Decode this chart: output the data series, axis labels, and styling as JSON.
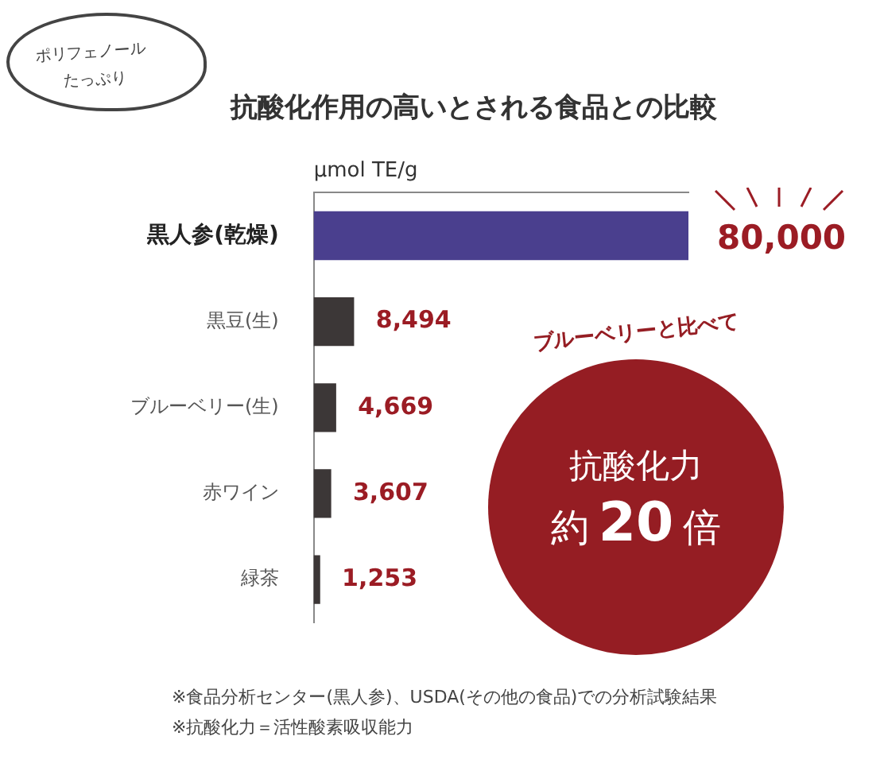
{
  "chart_data": {
    "type": "bar",
    "orientation": "horizontal",
    "title": "抗酸化作用の高いとされる食品との比較",
    "xlabel": "μmol TE/g",
    "categories": [
      "黒人参(乾燥)",
      "黒豆(生)",
      "ブルーベリー(生)",
      "赤ワイン",
      "緑茶"
    ],
    "values": [
      80000,
      8494,
      4669,
      3607,
      1253
    ],
    "colors": [
      "#4a3f8e",
      "#3c3737",
      "#3c3737",
      "#3c3737",
      "#3c3737"
    ],
    "value_labels": [
      "80,000",
      "8,494",
      "4,669",
      "3,607",
      "1,253"
    ],
    "xlim": [
      0,
      80000
    ],
    "tick_labels": "y",
    "grid": false,
    "legend": false,
    "annotations": [
      "ポリフェノール",
      "たっぷり",
      "ブルーベリーと比べて",
      "抗酸化力",
      "約20倍",
      "※食品分析センター(黒人参)、USDA(その他の食品)での分析試験結果",
      "※抗酸化力＝活性酸素吸収能力"
    ]
  }
}
